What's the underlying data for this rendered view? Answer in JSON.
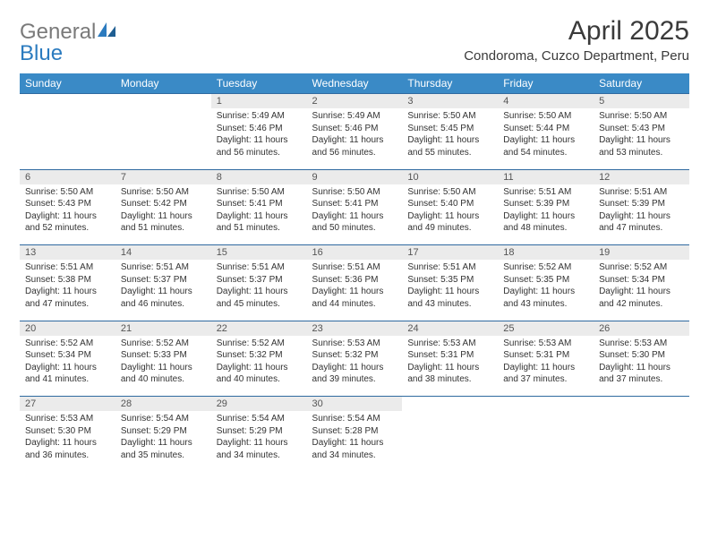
{
  "brand": {
    "part1": "General",
    "part2": "Blue"
  },
  "title": "April 2025",
  "location": "Condoroma, Cuzco Department, Peru",
  "colors": {
    "header_bg": "#3a8ac6",
    "header_text": "#ffffff",
    "daynum_bg": "#ebebeb",
    "rule": "#2f6aa0",
    "text": "#333333",
    "brand_gray": "#7a7a7a",
    "brand_blue": "#2b7bbf"
  },
  "dow": [
    "Sunday",
    "Monday",
    "Tuesday",
    "Wednesday",
    "Thursday",
    "Friday",
    "Saturday"
  ],
  "weeks": [
    [
      null,
      null,
      {
        "n": "1",
        "sr": "Sunrise: 5:49 AM",
        "ss": "Sunset: 5:46 PM",
        "d1": "Daylight: 11 hours",
        "d2": "and 56 minutes."
      },
      {
        "n": "2",
        "sr": "Sunrise: 5:49 AM",
        "ss": "Sunset: 5:46 PM",
        "d1": "Daylight: 11 hours",
        "d2": "and 56 minutes."
      },
      {
        "n": "3",
        "sr": "Sunrise: 5:50 AM",
        "ss": "Sunset: 5:45 PM",
        "d1": "Daylight: 11 hours",
        "d2": "and 55 minutes."
      },
      {
        "n": "4",
        "sr": "Sunrise: 5:50 AM",
        "ss": "Sunset: 5:44 PM",
        "d1": "Daylight: 11 hours",
        "d2": "and 54 minutes."
      },
      {
        "n": "5",
        "sr": "Sunrise: 5:50 AM",
        "ss": "Sunset: 5:43 PM",
        "d1": "Daylight: 11 hours",
        "d2": "and 53 minutes."
      }
    ],
    [
      {
        "n": "6",
        "sr": "Sunrise: 5:50 AM",
        "ss": "Sunset: 5:43 PM",
        "d1": "Daylight: 11 hours",
        "d2": "and 52 minutes."
      },
      {
        "n": "7",
        "sr": "Sunrise: 5:50 AM",
        "ss": "Sunset: 5:42 PM",
        "d1": "Daylight: 11 hours",
        "d2": "and 51 minutes."
      },
      {
        "n": "8",
        "sr": "Sunrise: 5:50 AM",
        "ss": "Sunset: 5:41 PM",
        "d1": "Daylight: 11 hours",
        "d2": "and 51 minutes."
      },
      {
        "n": "9",
        "sr": "Sunrise: 5:50 AM",
        "ss": "Sunset: 5:41 PM",
        "d1": "Daylight: 11 hours",
        "d2": "and 50 minutes."
      },
      {
        "n": "10",
        "sr": "Sunrise: 5:50 AM",
        "ss": "Sunset: 5:40 PM",
        "d1": "Daylight: 11 hours",
        "d2": "and 49 minutes."
      },
      {
        "n": "11",
        "sr": "Sunrise: 5:51 AM",
        "ss": "Sunset: 5:39 PM",
        "d1": "Daylight: 11 hours",
        "d2": "and 48 minutes."
      },
      {
        "n": "12",
        "sr": "Sunrise: 5:51 AM",
        "ss": "Sunset: 5:39 PM",
        "d1": "Daylight: 11 hours",
        "d2": "and 47 minutes."
      }
    ],
    [
      {
        "n": "13",
        "sr": "Sunrise: 5:51 AM",
        "ss": "Sunset: 5:38 PM",
        "d1": "Daylight: 11 hours",
        "d2": "and 47 minutes."
      },
      {
        "n": "14",
        "sr": "Sunrise: 5:51 AM",
        "ss": "Sunset: 5:37 PM",
        "d1": "Daylight: 11 hours",
        "d2": "and 46 minutes."
      },
      {
        "n": "15",
        "sr": "Sunrise: 5:51 AM",
        "ss": "Sunset: 5:37 PM",
        "d1": "Daylight: 11 hours",
        "d2": "and 45 minutes."
      },
      {
        "n": "16",
        "sr": "Sunrise: 5:51 AM",
        "ss": "Sunset: 5:36 PM",
        "d1": "Daylight: 11 hours",
        "d2": "and 44 minutes."
      },
      {
        "n": "17",
        "sr": "Sunrise: 5:51 AM",
        "ss": "Sunset: 5:35 PM",
        "d1": "Daylight: 11 hours",
        "d2": "and 43 minutes."
      },
      {
        "n": "18",
        "sr": "Sunrise: 5:52 AM",
        "ss": "Sunset: 5:35 PM",
        "d1": "Daylight: 11 hours",
        "d2": "and 43 minutes."
      },
      {
        "n": "19",
        "sr": "Sunrise: 5:52 AM",
        "ss": "Sunset: 5:34 PM",
        "d1": "Daylight: 11 hours",
        "d2": "and 42 minutes."
      }
    ],
    [
      {
        "n": "20",
        "sr": "Sunrise: 5:52 AM",
        "ss": "Sunset: 5:34 PM",
        "d1": "Daylight: 11 hours",
        "d2": "and 41 minutes."
      },
      {
        "n": "21",
        "sr": "Sunrise: 5:52 AM",
        "ss": "Sunset: 5:33 PM",
        "d1": "Daylight: 11 hours",
        "d2": "and 40 minutes."
      },
      {
        "n": "22",
        "sr": "Sunrise: 5:52 AM",
        "ss": "Sunset: 5:32 PM",
        "d1": "Daylight: 11 hours",
        "d2": "and 40 minutes."
      },
      {
        "n": "23",
        "sr": "Sunrise: 5:53 AM",
        "ss": "Sunset: 5:32 PM",
        "d1": "Daylight: 11 hours",
        "d2": "and 39 minutes."
      },
      {
        "n": "24",
        "sr": "Sunrise: 5:53 AM",
        "ss": "Sunset: 5:31 PM",
        "d1": "Daylight: 11 hours",
        "d2": "and 38 minutes."
      },
      {
        "n": "25",
        "sr": "Sunrise: 5:53 AM",
        "ss": "Sunset: 5:31 PM",
        "d1": "Daylight: 11 hours",
        "d2": "and 37 minutes."
      },
      {
        "n": "26",
        "sr": "Sunrise: 5:53 AM",
        "ss": "Sunset: 5:30 PM",
        "d1": "Daylight: 11 hours",
        "d2": "and 37 minutes."
      }
    ],
    [
      {
        "n": "27",
        "sr": "Sunrise: 5:53 AM",
        "ss": "Sunset: 5:30 PM",
        "d1": "Daylight: 11 hours",
        "d2": "and 36 minutes."
      },
      {
        "n": "28",
        "sr": "Sunrise: 5:54 AM",
        "ss": "Sunset: 5:29 PM",
        "d1": "Daylight: 11 hours",
        "d2": "and 35 minutes."
      },
      {
        "n": "29",
        "sr": "Sunrise: 5:54 AM",
        "ss": "Sunset: 5:29 PM",
        "d1": "Daylight: 11 hours",
        "d2": "and 34 minutes."
      },
      {
        "n": "30",
        "sr": "Sunrise: 5:54 AM",
        "ss": "Sunset: 5:28 PM",
        "d1": "Daylight: 11 hours",
        "d2": "and 34 minutes."
      },
      null,
      null,
      null
    ]
  ]
}
